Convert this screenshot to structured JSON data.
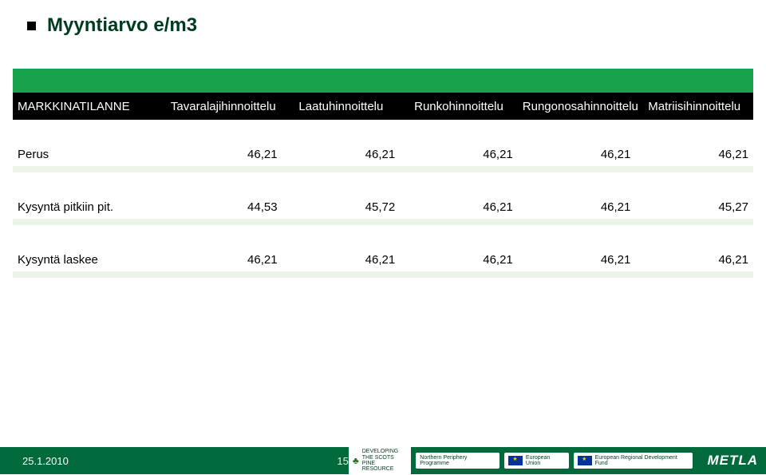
{
  "title": "Myyntiarvo e/m3",
  "table": {
    "header_bg": "#000000",
    "header_fg": "#ffffff",
    "greenbar_color": "#18a24b",
    "palebar_color": "#ecf4ea",
    "columns": [
      "MARKKINATILANNE",
      "Tavaralajihinnoittelu",
      "Laatuhinnoittelu",
      "Runkohinnoittelu",
      "Rungonosahinnoittelu",
      "Matriisihinnoittelu"
    ],
    "rows": [
      {
        "label": "Perus",
        "values": [
          "46,21",
          "46,21",
          "46,21",
          "46,21",
          "46,21"
        ]
      },
      {
        "label": "Kysyntä pitkiin pit.",
        "values": [
          "44,53",
          "45,72",
          "46,21",
          "46,21",
          "45,27"
        ]
      },
      {
        "label": "Kysyntä laskee",
        "values": [
          "46,21",
          "46,21",
          "46,21",
          "46,21",
          "46,21"
        ]
      }
    ]
  },
  "footer": {
    "date": "25.1.2010",
    "page": "15",
    "logos": {
      "scots": [
        "DEVELOPING",
        "THE SCOTS PINE",
        "RESOURCE"
      ],
      "npp": "Northern Periphery Programme",
      "eu1": "European Union",
      "eu2": "European Regional Development Fund",
      "metla": "METLA"
    },
    "bg": "#006a3c"
  }
}
